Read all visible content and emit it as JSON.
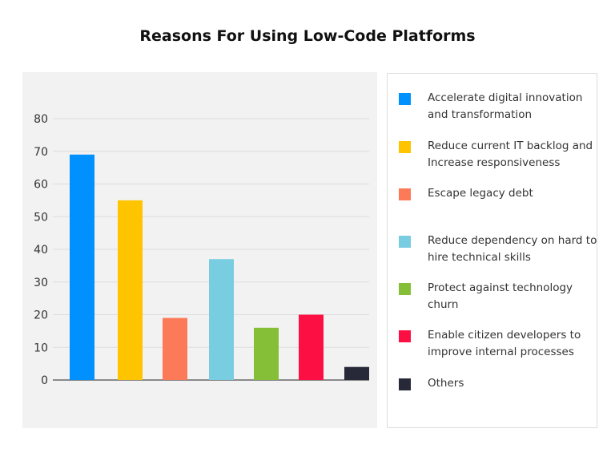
{
  "chart_data": {
    "type": "bar",
    "title": "Reasons For Using Low-Code Platforms",
    "categories": [
      "Accelerate digital innovation and transformation",
      "Reduce current IT backlog and Increase responsiveness",
      "Escape legacy debt",
      "Reduce dependency on hard to hire technical skills",
      "Protect against technology churn",
      "Enable citizen developers to improve internal processes",
      "Others"
    ],
    "values": [
      69,
      55,
      19,
      37,
      16,
      20,
      4
    ],
    "colors": [
      "#0091ff",
      "#ffc400",
      "#fc7a57",
      "#79cde0",
      "#84bf37",
      "#fc1044",
      "#272838"
    ],
    "yticks": [
      0,
      10,
      20,
      30,
      40,
      50,
      60,
      70,
      80
    ],
    "ylim": [
      0,
      80
    ],
    "grid": true,
    "legend_position": "right"
  }
}
